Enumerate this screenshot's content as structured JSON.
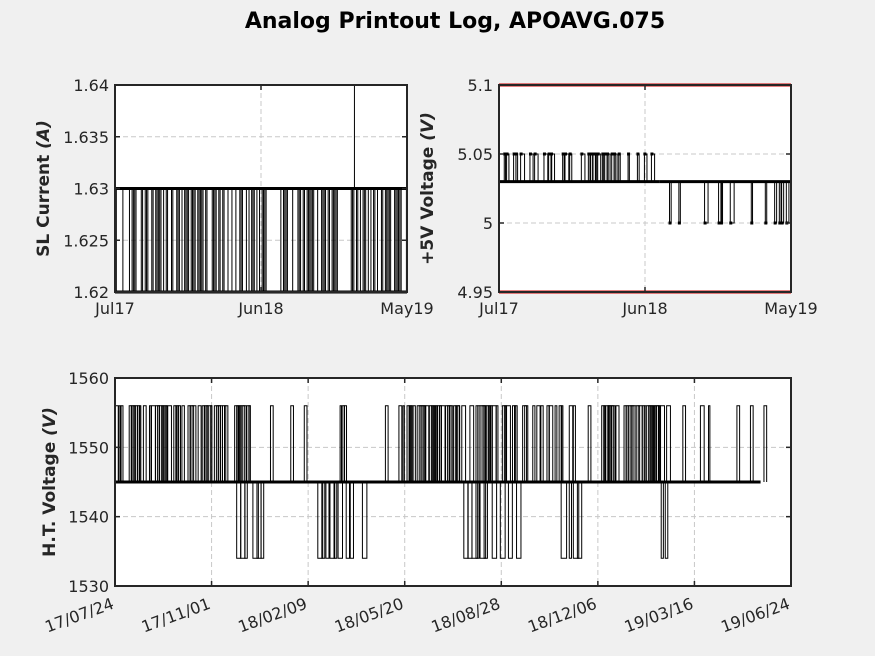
{
  "figure": {
    "title": "Analog Printout Log, APOAVG.075",
    "background": "#f0f0f0",
    "axes_background": "#ffffff",
    "trace_color": "#000000",
    "limit_color": "#d00000"
  },
  "chart_data": [
    {
      "type": "line",
      "ylabel_main": "SL Current ",
      "ylabel_unit": "(A)",
      "x_tick_labels": [
        "Jul17",
        "Jun18",
        "May19"
      ],
      "y_tick_labels": [
        "1.62",
        "1.625",
        "1.63",
        "1.635",
        "1.64"
      ],
      "ylim": [
        1.62,
        1.64
      ],
      "grid": true,
      "series": [
        {
          "baseline": 1.63,
          "alternate": 1.62,
          "description_note": "",
          "spikes_to_1_62_dense_periods": [
            [
              0.0,
              0.52
            ],
            [
              0.55,
              0.77
            ],
            [
              0.8,
              1.0
            ]
          ],
          "spike_to_1_64_at": 0.82
        }
      ]
    },
    {
      "type": "line",
      "ylabel_main": "+5V Voltage  ",
      "ylabel_unit": "(V)",
      "x_tick_labels": [
        "Jul17",
        "Jun18",
        "May19"
      ],
      "y_tick_labels": [
        "4.95",
        "5",
        "5.05",
        "5.1"
      ],
      "ylim": [
        4.95,
        5.1
      ],
      "grid": true,
      "limit_lines": [
        4.95,
        5.1
      ],
      "series": [
        {
          "segments": [
            {
              "from": 0.0,
              "to": 0.55,
              "baseline": 5.03,
              "alternate": 5.05
            },
            {
              "from": 0.55,
              "to": 1.0,
              "baseline": 5.03,
              "alternate": 5.0
            }
          ]
        }
      ]
    },
    {
      "type": "line",
      "ylabel_main": "H.T. Voltage ",
      "ylabel_unit": "(V)",
      "x_tick_labels": [
        "17/07/24",
        "17/11/01",
        "18/02/09",
        "18/05/20",
        "18/08/28",
        "18/12/06",
        "19/03/16",
        "19/06/24"
      ],
      "y_tick_labels": [
        "1530",
        "1540",
        "1550",
        "1560"
      ],
      "ylim": [
        1530,
        1560
      ],
      "grid": true,
      "series": [
        {
          "baseline": 1545,
          "high": 1556,
          "low": 1534,
          "high_periods": [
            [
              0.0,
              0.2
            ],
            [
              0.33,
              0.33
            ],
            [
              0.42,
              0.68
            ],
            [
              0.72,
              0.82
            ],
            [
              0.86,
              0.88
            ]
          ],
          "low_periods": [
            [
              0.18,
              0.22
            ],
            [
              0.3,
              0.37
            ],
            [
              0.51,
              0.6
            ],
            [
              0.66,
              0.7
            ],
            [
              0.79,
              0.82
            ]
          ]
        }
      ]
    }
  ]
}
